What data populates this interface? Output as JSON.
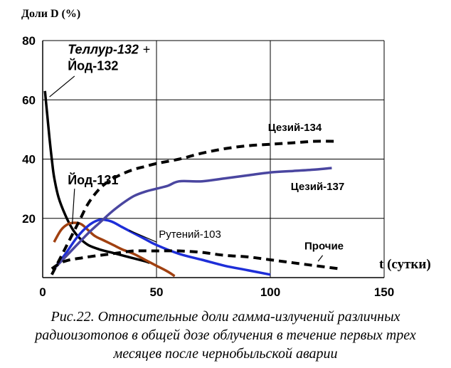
{
  "chart_data": {
    "type": "line",
    "ylabel": "Доли D (%)",
    "xlabel": "t (сутки)",
    "xlim": [
      0,
      150
    ],
    "ylim": [
      0,
      80
    ],
    "x_ticks": [
      "0",
      "50",
      "100",
      "150"
    ],
    "y_ticks": [
      "20",
      "40",
      "60",
      "80"
    ],
    "grid": true,
    "series": [
      {
        "name": "Теллур-132 + Йод-132",
        "color": "#000000",
        "style": "solid",
        "x": [
          1,
          2,
          3,
          4,
          5,
          7,
          10,
          13,
          16,
          20,
          25,
          30,
          35,
          40,
          45,
          47
        ],
        "y": [
          63,
          55,
          47,
          40,
          34,
          27,
          21,
          16.5,
          13.5,
          11,
          9.5,
          8.5,
          7.5,
          6.5,
          5.5,
          5
        ]
      },
      {
        "name": "Йод-131",
        "color": "#a04010",
        "style": "solid",
        "x": [
          5,
          8,
          11,
          14,
          17,
          20,
          23,
          27,
          31,
          35,
          40,
          45,
          50,
          55,
          58
        ],
        "y": [
          12,
          16,
          18,
          18.5,
          18,
          16,
          14,
          12.5,
          11,
          9.5,
          8,
          6,
          4,
          2,
          0.5
        ]
      },
      {
        "name": "Рутений-103",
        "color": "#1e2ed8",
        "style": "solid",
        "x": [
          5,
          10,
          15,
          20,
          25,
          30,
          35,
          40,
          45,
          50,
          60,
          70,
          80,
          90,
          100
        ],
        "y": [
          3,
          8,
          13.5,
          17.5,
          19.5,
          19,
          17,
          15,
          13,
          11,
          8,
          6,
          4,
          2.5,
          1
        ]
      },
      {
        "name": "Цезий-137",
        "color": "#4a46a0",
        "style": "solid",
        "x": [
          5,
          10,
          15,
          20,
          25,
          30,
          35,
          40,
          45,
          50,
          55,
          60,
          70,
          80,
          90,
          100,
          110,
          120,
          127
        ],
        "y": [
          3,
          7,
          11,
          15,
          18.5,
          22,
          25,
          27.5,
          29,
          30,
          31,
          32.5,
          32.5,
          33.5,
          34.5,
          35.5,
          36,
          36.5,
          37
        ]
      },
      {
        "name": "Цезий-134",
        "color": "#000000",
        "style": "dashed",
        "x": [
          4,
          8,
          12,
          16,
          20,
          25,
          30,
          35,
          40,
          45,
          50,
          60,
          70,
          80,
          90,
          100,
          110,
          120,
          130
        ],
        "y": [
          1,
          7,
          13,
          19,
          25,
          30,
          33,
          35,
          36.5,
          37.5,
          38.5,
          40,
          42,
          43.5,
          44.5,
          45,
          45.5,
          46,
          46
        ]
      },
      {
        "name": "Прочие",
        "color": "#000000",
        "style": "dashed",
        "x": [
          4,
          8,
          12,
          16,
          20,
          25,
          30,
          35,
          40,
          50,
          60,
          70,
          80,
          90,
          100,
          110,
          120,
          130
        ],
        "y": [
          3,
          5,
          6,
          6.5,
          7,
          7.5,
          8,
          8.5,
          9,
          9,
          9,
          8.5,
          7.5,
          7,
          6,
          5,
          4,
          3
        ]
      }
    ],
    "annotations": [
      {
        "text": "Теллур-132",
        "x": 11,
        "y": 75.5,
        "style": "big-italic"
      },
      {
        "text": "+",
        "x": 44,
        "y": 75.5,
        "style": "big"
      },
      {
        "text": "Йод-132",
        "x": 11,
        "y": 70,
        "style": "big"
      },
      {
        "text": "Йод-131",
        "x": 11,
        "y": 31.5,
        "style": "big"
      },
      {
        "text": "Рутений-103",
        "x": 51,
        "y": 13.5,
        "style": "normal"
      },
      {
        "text": "Цезий-134",
        "x": 99,
        "y": 49.5,
        "style": "bold"
      },
      {
        "text": "Цезий-137",
        "x": 109,
        "y": 29.5,
        "style": "bold"
      },
      {
        "text": "Прочие",
        "x": 115,
        "y": 9.5,
        "style": "bold"
      }
    ]
  },
  "caption": {
    "line1": "Рис.22. Относительные доли гамма-излучений различных",
    "line2": "радиоизотопов в общей дозе облучения в течение первых трех",
    "line3": "месяцев после чернобыльской аварии"
  }
}
